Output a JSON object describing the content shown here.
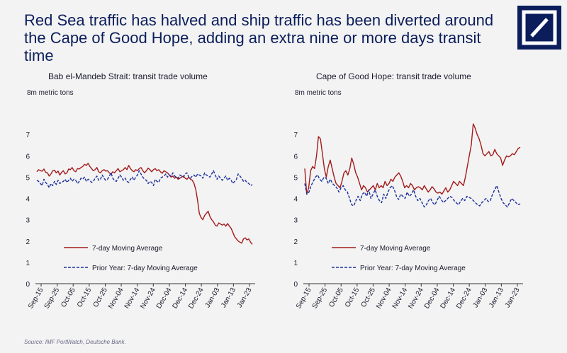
{
  "title": "Red Sea traffic has halved and ship traffic has been diverted around the Cape of Good Hope, adding an extra nine or more days transit time",
  "source": "Source: IMF PortWatch, Deutsche Bank.",
  "colors": {
    "current": "#a31a1a",
    "prior": "#1a2f9e",
    "title": "#0b1e5b",
    "logo": "#0b1e5b"
  },
  "logo_icon": "deutsche-bank-logo-icon",
  "chart_data": [
    {
      "type": "line",
      "title": "Bab el-Mandeb Strait: transit trade volume",
      "ylabel": "8m metric tons",
      "ylim": [
        0,
        8
      ],
      "yticks": [
        0,
        1,
        2,
        3,
        4,
        5,
        6,
        7
      ],
      "xticks": [
        "Sep-15",
        "Sep-25",
        "Oct-05",
        "Oct-15",
        "Oct-25",
        "Nov-04",
        "Nov-14",
        "Nov-24",
        "Dec-04",
        "Dec-14",
        "Dec-24",
        "Jan-03",
        "Jan-13",
        "Jan-23"
      ],
      "grid": false,
      "legend_position": "bottom-left",
      "series": [
        {
          "name": "7-day Moving Average",
          "style": "solid",
          "values": [
            5.25,
            5.35,
            5.3,
            5.28,
            5.38,
            5.22,
            5.2,
            5.05,
            5.15,
            5.3,
            5.32,
            5.2,
            5.28,
            5.1,
            5.22,
            5.3,
            5.15,
            5.2,
            5.38,
            5.35,
            5.45,
            5.3,
            5.25,
            5.4,
            5.38,
            5.45,
            5.5,
            5.6,
            5.55,
            5.65,
            5.5,
            5.4,
            5.3,
            5.35,
            5.45,
            5.25,
            5.2,
            5.3,
            5.35,
            5.28,
            5.3,
            5.2,
            5.15,
            5.25,
            5.2,
            5.3,
            5.4,
            5.25,
            5.3,
            5.35,
            5.45,
            5.35,
            5.55,
            5.4,
            5.3,
            5.25,
            5.35,
            5.3,
            5.4,
            5.45,
            5.3,
            5.2,
            5.3,
            5.42,
            5.35,
            5.25,
            5.35,
            5.4,
            5.3,
            5.35,
            5.25,
            5.18,
            5.3,
            5.25,
            5.2,
            5.1,
            5.0,
            5.05,
            4.95,
            5.0,
            4.9,
            4.95,
            5.0,
            5.05,
            4.95,
            4.9,
            5.0,
            4.9,
            4.85,
            4.7,
            4.4,
            3.9,
            3.3,
            3.1,
            3.0,
            3.2,
            3.3,
            3.4,
            3.15,
            3.0,
            2.9,
            2.75,
            2.7,
            2.85,
            2.8,
            2.75,
            2.8,
            2.7,
            2.82,
            2.7,
            2.6,
            2.4,
            2.2,
            2.1,
            2.0,
            1.95,
            1.9,
            2.1,
            2.15,
            2.05,
            2.1,
            1.95,
            1.85
          ]
        },
        {
          "name": "Prior Year: 7-day Moving Average",
          "style": "dashed",
          "values": [
            4.85,
            4.8,
            4.7,
            4.6,
            4.9,
            4.75,
            4.65,
            4.5,
            4.7,
            4.6,
            4.8,
            4.65,
            4.85,
            4.7,
            4.75,
            4.8,
            4.9,
            4.75,
            4.85,
            4.95,
            4.8,
            4.9,
            4.85,
            4.7,
            4.8,
            4.95,
            4.9,
            5.0,
            4.8,
            4.9,
            4.85,
            4.75,
            4.8,
            4.95,
            5.05,
            4.85,
            4.9,
            5.1,
            4.95,
            4.85,
            4.9,
            5.05,
            5.2,
            4.95,
            4.85,
            4.8,
            4.95,
            5.1,
            5.0,
            4.85,
            4.95,
            4.8,
            4.75,
            4.9,
            5.0,
            4.85,
            5.0,
            5.1,
            5.3,
            5.15,
            5.0,
            4.9,
            4.85,
            4.7,
            4.8,
            4.75,
            4.6,
            4.9,
            4.8,
            4.75,
            4.95,
            5.0,
            5.05,
            5.15,
            5.0,
            5.1,
            5.05,
            5.2,
            5.05,
            5.0,
            4.95,
            5.1,
            5.05,
            5.0,
            5.15,
            5.2,
            5.0,
            4.95,
            5.05,
            5.1,
            5.0,
            5.15,
            5.1,
            5.05,
            4.95,
            5.2,
            5.1,
            5.05,
            5.0,
            5.15,
            5.3,
            5.1,
            4.9,
            5.05,
            4.95,
            4.85,
            4.95,
            5.05,
            4.85,
            4.95,
            4.85,
            4.7,
            4.8,
            4.9,
            5.15,
            5.05,
            4.95,
            4.8,
            4.85,
            4.75,
            4.7,
            4.6,
            4.65
          ]
        }
      ]
    },
    {
      "type": "line",
      "title": "Cape of Good Hope: transit trade volume",
      "ylabel": "8m metric tons",
      "ylim": [
        0,
        8
      ],
      "yticks": [
        0,
        1,
        2,
        3,
        4,
        5,
        6,
        7
      ],
      "xticks": [
        "Sep-15",
        "Sep-25",
        "Oct-05",
        "Oct-15",
        "Oct-25",
        "Nov-04",
        "Nov-14",
        "Nov-24",
        "Dec-04",
        "Dec-14",
        "Dec-24",
        "Jan-03",
        "Jan-13",
        "Jan-23"
      ],
      "grid": false,
      "legend_position": "bottom-left",
      "series": [
        {
          "name": "7-day Moving Average",
          "style": "solid",
          "values": [
            5.4,
            4.2,
            4.5,
            5.3,
            5.5,
            5.4,
            6.0,
            6.9,
            6.8,
            6.1,
            5.4,
            5.0,
            5.5,
            5.8,
            5.4,
            5.0,
            4.7,
            4.6,
            4.5,
            4.8,
            5.2,
            5.3,
            5.1,
            5.4,
            5.9,
            5.6,
            5.2,
            5.0,
            4.7,
            4.4,
            4.6,
            4.5,
            4.3,
            4.4,
            4.5,
            4.6,
            4.4,
            4.7,
            4.5,
            4.6,
            4.5,
            4.8,
            4.6,
            4.7,
            4.9,
            4.8,
            5.0,
            5.1,
            5.2,
            5.05,
            4.8,
            4.5,
            4.6,
            4.5,
            4.7,
            4.6,
            4.4,
            4.5,
            4.55,
            4.5,
            4.4,
            4.6,
            4.45,
            4.3,
            4.4,
            4.55,
            4.45,
            4.3,
            4.25,
            4.3,
            4.2,
            4.35,
            4.5,
            4.3,
            4.4,
            4.6,
            4.8,
            4.7,
            4.6,
            4.8,
            4.7,
            4.6,
            5.0,
            5.5,
            6.0,
            6.5,
            7.5,
            7.3,
            7.0,
            6.8,
            6.5,
            6.1,
            6.0,
            6.1,
            6.2,
            6.0,
            6.05,
            6.3,
            6.1,
            6.0,
            5.9,
            5.55,
            5.8,
            6.0,
            5.95,
            6.0,
            6.1,
            6.05,
            6.2,
            6.35,
            6.4
          ]
        },
        {
          "name": "Prior Year: 7-day Moving Average",
          "style": "dashed",
          "values": [
            4.7,
            4.2,
            4.3,
            4.6,
            4.8,
            5.0,
            5.1,
            4.9,
            4.8,
            5.0,
            4.95,
            4.7,
            4.9,
            4.7,
            4.6,
            4.5,
            4.3,
            4.5,
            4.6,
            4.4,
            4.3,
            4.0,
            3.7,
            3.65,
            3.9,
            4.1,
            3.9,
            4.2,
            4.3,
            4.1,
            4.4,
            4.0,
            4.2,
            4.4,
            4.1,
            3.9,
            3.8,
            4.2,
            4.0,
            4.3,
            4.5,
            4.6,
            4.4,
            4.1,
            3.95,
            4.2,
            4.1,
            4.0,
            4.3,
            4.1,
            4.2,
            4.4,
            4.1,
            3.9,
            4.0,
            3.8,
            3.6,
            3.7,
            3.9,
            4.0,
            3.8,
            3.7,
            3.9,
            4.1,
            3.95,
            3.8,
            3.9,
            4.0,
            4.1,
            4.05,
            3.9,
            3.8,
            3.7,
            3.85,
            4.0,
            3.9,
            4.1,
            4.05,
            4.0,
            3.9,
            3.8,
            3.7,
            3.65,
            3.8,
            3.9,
            4.0,
            3.85,
            3.9,
            4.2,
            4.4,
            4.6,
            4.3,
            4.0,
            3.8,
            3.7,
            3.6,
            3.8,
            4.0,
            3.9,
            3.8,
            3.7,
            3.75
          ]
        }
      ]
    }
  ]
}
